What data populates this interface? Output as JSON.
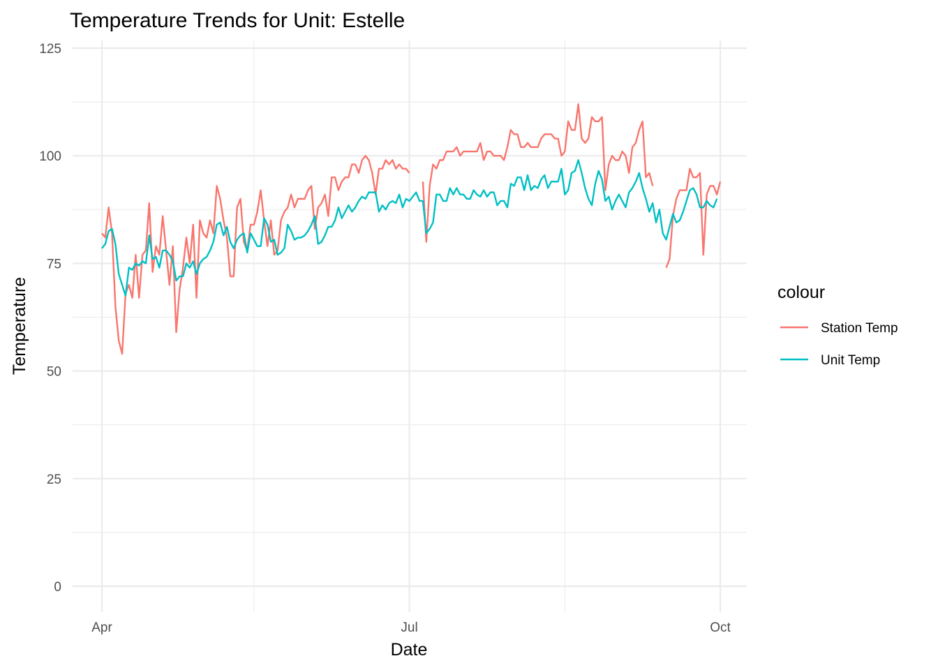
{
  "chart_data": {
    "type": "line",
    "title": "Temperature Trends for Unit: Estelle",
    "xlabel": "Date",
    "ylabel": "Temperature",
    "x_axis_type": "date",
    "xlim": [
      "2024-04-01",
      "2024-10-01"
    ],
    "ylim": [
      -5,
      125
    ],
    "x_ticks": [
      {
        "date": "2024-04-01",
        "label": "Apr"
      },
      {
        "date": "2024-07-01",
        "label": "Jul"
      },
      {
        "date": "2024-10-01",
        "label": "Oct"
      }
    ],
    "x_minor_ticks": [
      "2024-05-16",
      "2024-08-16"
    ],
    "y_ticks": [
      0,
      25,
      50,
      75,
      100,
      125
    ],
    "y_minor_ticks": [
      12.5,
      37.5,
      62.5,
      87.5,
      112.5
    ],
    "grid": true,
    "legend": {
      "title": "colour",
      "position": "right"
    },
    "start_date": "2024-04-01",
    "series": [
      {
        "name": "Station Temp",
        "color": "#F8766D",
        "values": [
          82,
          81,
          88,
          82,
          65,
          57,
          54,
          68,
          70,
          67,
          77,
          67,
          77,
          78,
          89,
          73,
          79,
          77,
          86,
          78,
          70,
          79,
          59,
          69,
          74,
          81,
          75,
          84,
          67,
          85,
          82,
          81,
          85,
          82,
          93,
          90,
          85,
          81,
          72,
          72,
          88,
          90,
          80,
          78,
          84,
          84,
          87,
          92,
          85,
          79,
          85,
          77,
          78,
          85,
          87,
          88,
          91,
          88,
          90,
          90,
          90,
          92,
          93,
          83,
          88,
          89,
          91,
          86,
          95,
          95,
          92,
          94,
          95,
          95,
          98,
          98,
          96,
          99,
          100,
          99,
          96,
          91,
          97,
          97,
          99,
          98,
          99,
          97,
          98,
          97,
          97,
          96,
          null,
          null,
          null,
          94,
          80,
          93,
          98,
          97,
          99,
          99,
          101,
          101,
          101,
          102,
          100,
          101,
          101,
          101,
          101,
          101,
          103,
          99,
          101,
          101,
          100,
          100,
          100,
          99,
          102,
          106,
          105,
          105,
          102,
          102,
          103,
          102,
          102,
          102,
          104,
          105,
          105,
          105,
          104,
          104,
          100,
          101,
          108,
          106,
          106,
          112,
          104,
          103,
          104,
          109,
          108,
          108,
          109,
          92,
          98,
          100,
          99,
          99,
          101,
          100,
          96,
          102,
          103,
          106,
          108,
          95,
          96,
          93,
          null,
          null,
          null,
          74,
          76,
          86,
          90,
          92,
          92,
          92,
          97,
          95,
          95,
          96,
          77,
          91,
          93,
          93,
          91,
          94
        ]
      },
      {
        "name": "Unit Temp",
        "color": "#00BFC4",
        "values": [
          78.5,
          79.5,
          82.5,
          83.0,
          79.5,
          72.5,
          70.0,
          67.5,
          74.0,
          73.5,
          75.0,
          74.5,
          75.5,
          75.0,
          81.5,
          76.0,
          76.5,
          74.0,
          78.0,
          78.0,
          77.0,
          75.5,
          71.0,
          72.0,
          72.0,
          75.0,
          74.0,
          75.5,
          72.5,
          75.0,
          76.0,
          76.5,
          78.0,
          80.0,
          84.0,
          84.5,
          81.5,
          83.5,
          80.0,
          78.5,
          80.5,
          81.5,
          82.0,
          77.5,
          82.0,
          80.5,
          79.0,
          79.0,
          85.5,
          84.0,
          80.0,
          80.5,
          77.0,
          77.5,
          78.5,
          84.0,
          82.5,
          80.5,
          81.0,
          81.0,
          81.5,
          82.5,
          84.0,
          86.0,
          79.5,
          80.0,
          81.5,
          83.5,
          83.5,
          85.0,
          88.0,
          85.5,
          87.0,
          88.5,
          87.0,
          88.0,
          89.5,
          90.5,
          90.0,
          91.5,
          91.5,
          91.5,
          87.0,
          88.5,
          87.5,
          89.0,
          89.5,
          89.0,
          91.0,
          88.0,
          90.0,
          89.5,
          90.5,
          91.5,
          89.5,
          89.5,
          82.0,
          83.0,
          84.5,
          91.0,
          91.0,
          89.5,
          89.5,
          92.5,
          91.0,
          92.5,
          91.0,
          91.0,
          90.0,
          90.0,
          92.0,
          91.0,
          90.5,
          92.0,
          90.5,
          91.5,
          91.5,
          88.5,
          89.5,
          89.5,
          88.0,
          93.5,
          93.0,
          95.0,
          95.0,
          92.0,
          95.5,
          92.0,
          93.0,
          92.5,
          94.5,
          95.5,
          92.5,
          94.0,
          94.0,
          94.0,
          97.0,
          91.0,
          92.0,
          96.0,
          96.5,
          99.0,
          96.0,
          92.5,
          90.0,
          88.5,
          93.5,
          96.5,
          94.5,
          89.5,
          90.5,
          87.5,
          89.5,
          91.0,
          89.5,
          88.0,
          91.5,
          92.5,
          94.0,
          96.0,
          92.5,
          90.0,
          87.0,
          89.0,
          84.5,
          87.5,
          82.0,
          80.5,
          83.5,
          86.5,
          84.5,
          85.0,
          87.0,
          89.5,
          92.0,
          92.5,
          91.0,
          88.0,
          88.0,
          89.5,
          88.5,
          88.0,
          90.0
        ]
      }
    ]
  }
}
